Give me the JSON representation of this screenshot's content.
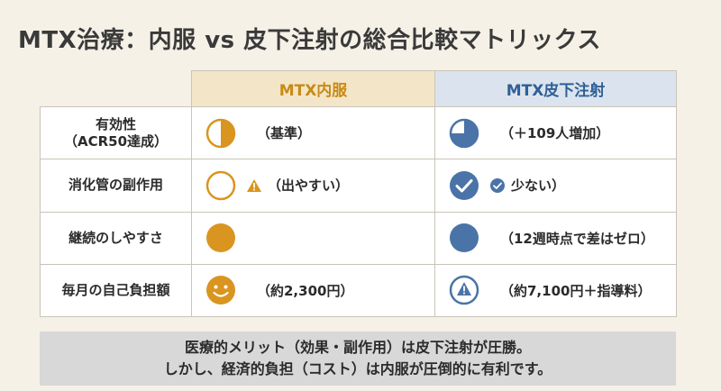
{
  "title": "MTX治療：内服 vs 皮下注射の総合比較マトリックス",
  "columns": {
    "oral": "MTX内服",
    "subcutaneous": "MTX皮下注射"
  },
  "rows": [
    {
      "label_line1": "有効性",
      "label_line2": "（ACR50達成）",
      "oral_icon": "half-circle-icon",
      "oral_text": "（基準）",
      "sc_icon": "quarter-pie-icon",
      "sc_text": "（＋109人増加）"
    },
    {
      "label_line1": "消化管の副作用",
      "label_line2": "",
      "oral_icon": "empty-circle-icon",
      "oral_text": "（出やすい）",
      "oral_badge": "warning-icon",
      "sc_icon": "check-circle-icon",
      "sc_text": "少ない）",
      "sc_badge": "small-check-icon"
    },
    {
      "label_line1": "継続のしやすさ",
      "label_line2": "",
      "oral_icon": "full-circle-icon",
      "oral_text": "",
      "sc_icon": "full-circle-icon",
      "sc_text": "（12週時点で差はゼロ）"
    },
    {
      "label_line1": "毎月の自己負担額",
      "label_line2": "",
      "oral_icon": "smiley-icon",
      "oral_text": "（約2,300円）",
      "sc_icon": "warning-circle-icon",
      "sc_text": "（約7,100円＋指導料）"
    }
  ],
  "footer": {
    "line1": "医療的メリット（効果・副作用）は皮下注射が圧勝。",
    "line2": "しかし、経済的負担（コスト）は内服が圧倒的に有利です。"
  },
  "colors": {
    "orange": "#d9951f",
    "blue": "#4a73a8",
    "background": "#f5f1e7"
  }
}
